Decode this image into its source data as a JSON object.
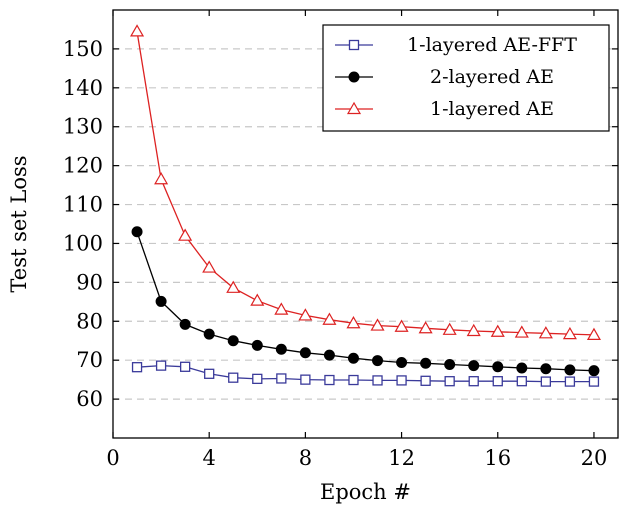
{
  "chart_data": {
    "type": "line",
    "xlabel": "Epoch #",
    "ylabel": "Test set Loss",
    "xlim": [
      0,
      21
    ],
    "ylim": [
      50,
      160
    ],
    "xticks": [
      0,
      4,
      8,
      12,
      16,
      20
    ],
    "yticks": [
      60,
      70,
      80,
      90,
      100,
      110,
      120,
      130,
      140,
      150
    ],
    "grid": "horizontal dashed",
    "legend_position": "top-right",
    "x": [
      1,
      2,
      3,
      4,
      5,
      6,
      7,
      8,
      9,
      10,
      11,
      12,
      13,
      14,
      15,
      16,
      17,
      18,
      19,
      20
    ],
    "series": [
      {
        "name": "1-layered AE-FFT",
        "color": "#3a3a9a",
        "marker": "square",
        "values": [
          68.2,
          68.6,
          68.3,
          66.5,
          65.5,
          65.2,
          65.3,
          65.0,
          64.9,
          64.9,
          64.8,
          64.8,
          64.7,
          64.6,
          64.6,
          64.6,
          64.6,
          64.5,
          64.5,
          64.5
        ]
      },
      {
        "name": "2-layered AE",
        "color": "#000000",
        "marker": "circle",
        "values": [
          103,
          85.1,
          79.2,
          76.7,
          75.0,
          73.8,
          72.8,
          71.9,
          71.3,
          70.5,
          69.9,
          69.4,
          69.2,
          68.9,
          68.6,
          68.3,
          68.0,
          67.8,
          67.5,
          67.3
        ]
      },
      {
        "name": "1-layered AE",
        "color": "#dd2222",
        "marker": "triangle",
        "values": [
          154.5,
          116.5,
          102.0,
          93.8,
          88.6,
          85.3,
          83.0,
          81.5,
          80.4,
          79.5,
          78.9,
          78.6,
          78.2,
          77.8,
          77.5,
          77.3,
          77.1,
          76.9,
          76.7,
          76.5
        ]
      }
    ]
  }
}
